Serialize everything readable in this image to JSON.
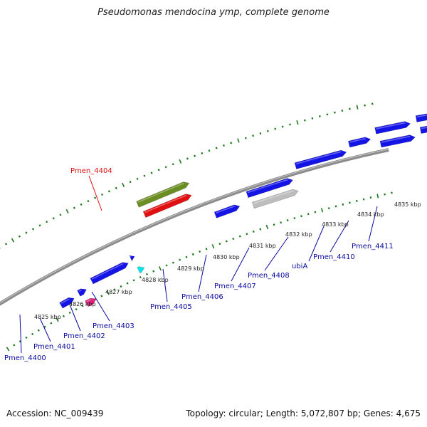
{
  "header": {
    "title": "Pseudomonas mendocina ymp, complete genome"
  },
  "footer": {
    "accession": "Accession: NC_009439",
    "summary": "Topology: circular; Length: 5,072,807 bp; Genes: 4,675"
  },
  "colors": {
    "backbone": "#8c8c8c",
    "tick": "#1a7a1a",
    "gene": "#1414e6",
    "highlight": "#e01010",
    "olive": "#6b8e23",
    "gray_gene": "#bdbdbd",
    "cyan": "#00e5ee",
    "magenta": "#e0207a",
    "lime": "#9aee2a",
    "label": "#0a0aa0"
  },
  "scale_labels": [
    {
      "id": "kbp-4825",
      "text": "4825 kbp"
    },
    {
      "id": "kbp-4826",
      "text": "4826 kbp"
    },
    {
      "id": "kbp-4827",
      "text": "4827 kbp"
    },
    {
      "id": "kbp-4828",
      "text": "4828 kbp"
    },
    {
      "id": "kbp-4829",
      "text": "4829 kbp"
    },
    {
      "id": "kbp-4830",
      "text": "4830 kbp"
    },
    {
      "id": "kbp-4831",
      "text": "4831 kbp"
    },
    {
      "id": "kbp-4832",
      "text": "4832 kbp"
    },
    {
      "id": "kbp-4833",
      "text": "4833 kbp"
    },
    {
      "id": "kbp-4834",
      "text": "4834 kbp"
    },
    {
      "id": "kbp-4835",
      "text": "4835 kbp"
    }
  ],
  "gene_labels": [
    {
      "id": "pmen-4400",
      "text": "Pmen_4400"
    },
    {
      "id": "pmen-4401",
      "text": "Pmen_4401"
    },
    {
      "id": "pmen-4402",
      "text": "Pmen_4402"
    },
    {
      "id": "pmen-4403",
      "text": "Pmen_4403"
    },
    {
      "id": "pmen-4404",
      "text": "Pmen_4404",
      "highlight": true
    },
    {
      "id": "pmen-4405",
      "text": "Pmen_4405"
    },
    {
      "id": "pmen-4406",
      "text": "Pmen_4406"
    },
    {
      "id": "pmen-4407",
      "text": "Pmen_4407"
    },
    {
      "id": "pmen-4408",
      "text": "Pmen_4408"
    },
    {
      "id": "ubia",
      "text": "ubiA"
    },
    {
      "id": "pmen-4410",
      "text": "Pmen_4410"
    },
    {
      "id": "pmen-4411",
      "text": "Pmen_4411"
    }
  ]
}
